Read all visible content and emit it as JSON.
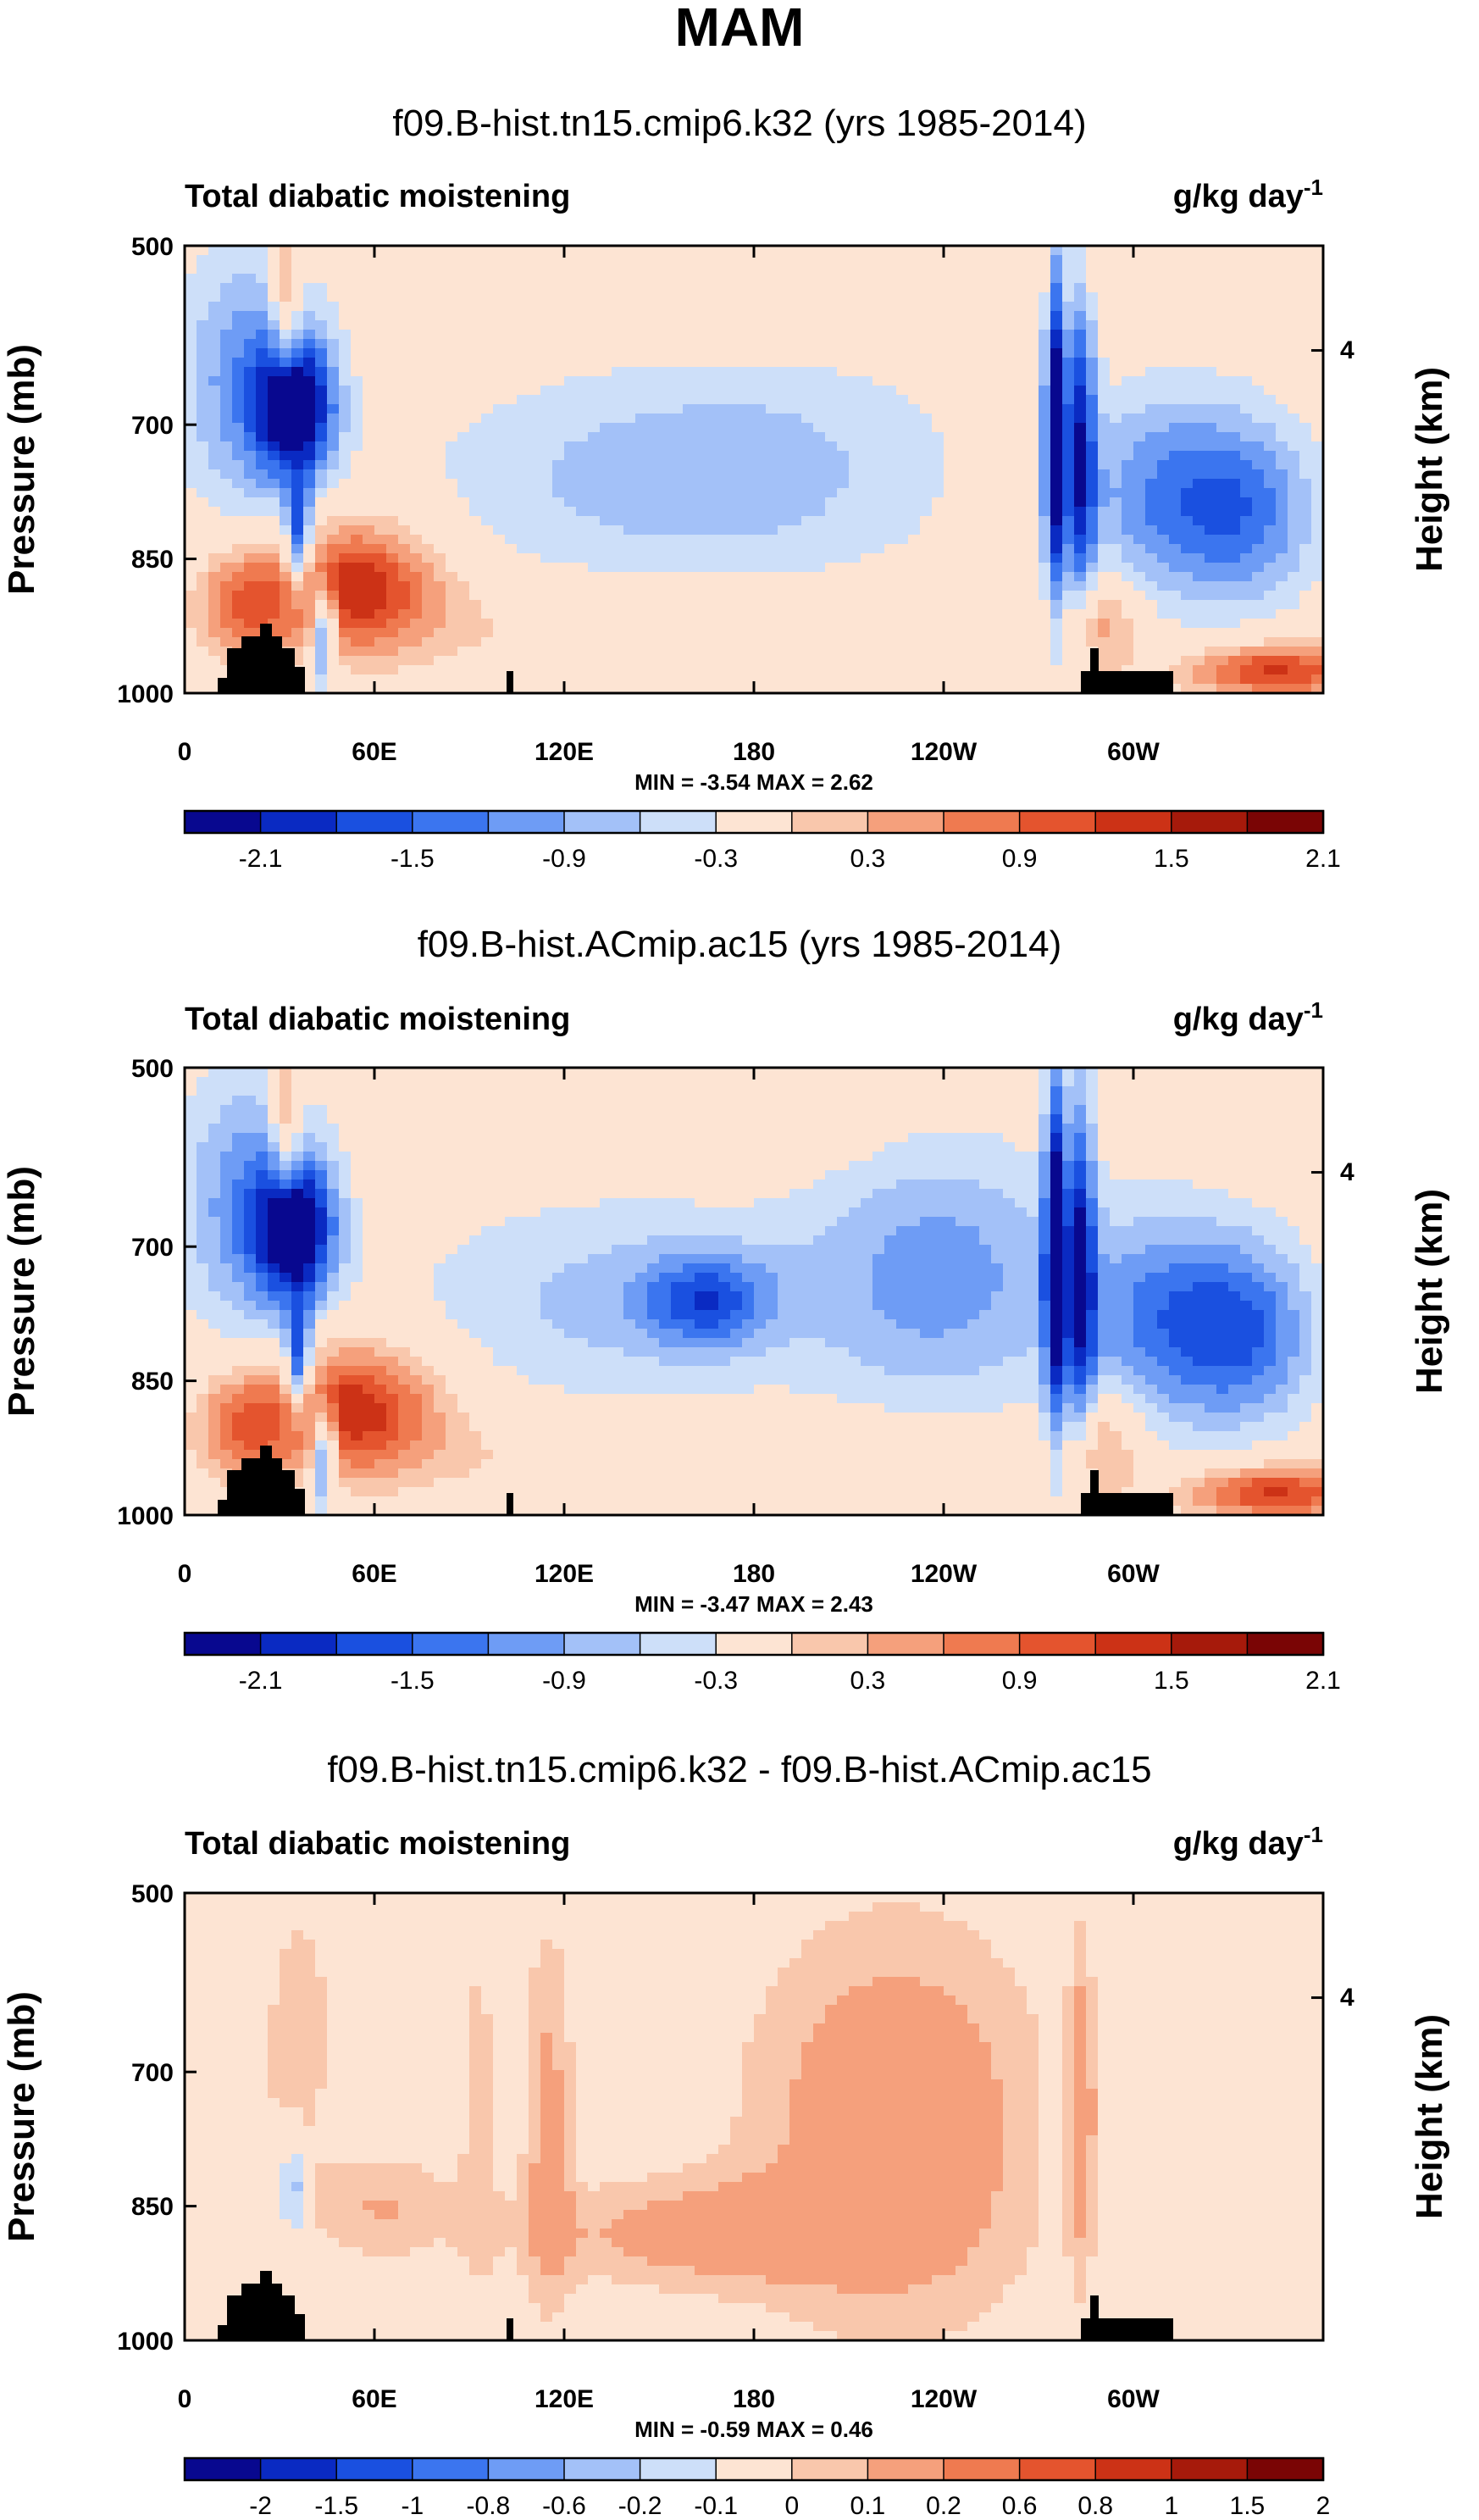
{
  "main_title": "MAM",
  "chart_data": [
    {
      "type": "heatmap",
      "title": "f09.B-hist.tn15.cmip6.k32 (yrs 1985-2014)",
      "left_label": "Total diabatic moistening",
      "unit_label": "g/kg day",
      "unit_exp": "-1",
      "ylabel": "Pressure (mb)",
      "ylabel_right": "Height (km)",
      "x_ticks": [
        "0",
        "60E",
        "120E",
        "180",
        "120W",
        "60W"
      ],
      "x_tick_lon": [
        0,
        60,
        120,
        180,
        240,
        300
      ],
      "xlim": [
        0,
        360
      ],
      "y_ticks": [
        "500",
        "700",
        "850",
        "1000"
      ],
      "y_tick_p": [
        500,
        700,
        850,
        1000
      ],
      "ylim": [
        500,
        1000
      ],
      "y_right_ticks": [
        "4"
      ],
      "y_right_p": [
        617
      ],
      "min_max": "MIN = -3.54  MAX =  2.62",
      "colorbar_labels": [
        "-2.1",
        "-1.5",
        "-0.9",
        "-0.3",
        "0.3",
        "0.9",
        "1.5",
        "2.1"
      ],
      "colorbar_label_bins": [
        1,
        3,
        5,
        7,
        9,
        11,
        13,
        15
      ],
      "blobs": [
        {
          "lon": 35,
          "p": 680,
          "rx": 12,
          "rp": 80,
          "v": -2.4
        },
        {
          "lon": 20,
          "p": 650,
          "rx": 22,
          "rp": 150,
          "v": -1.1
        },
        {
          "lon": 36,
          "p": 830,
          "rx": 4,
          "rp": 60,
          "v": -2.0
        },
        {
          "lon": 44,
          "p": 930,
          "rx": 4,
          "rp": 60,
          "v": -1.8
        },
        {
          "lon": 32,
          "p": 570,
          "rx": 5,
          "rp": 120,
          "v": 1.1
        },
        {
          "lon": 52,
          "p": 880,
          "rx": 28,
          "rp": 70,
          "v": 1.8
        },
        {
          "lon": 18,
          "p": 900,
          "rx": 14,
          "rp": 60,
          "v": 1.0
        },
        {
          "lon": 140,
          "p": 760,
          "rx": 70,
          "rp": 120,
          "v": -0.6
        },
        {
          "lon": 195,
          "p": 740,
          "rx": 60,
          "rp": 150,
          "v": -0.4
        },
        {
          "lon": 150,
          "p": 930,
          "rx": 110,
          "rp": 50,
          "v": 0.35
        },
        {
          "lon": 185,
          "p": 560,
          "rx": 50,
          "rp": 60,
          "v": 0.25
        },
        {
          "lon": 275,
          "p": 700,
          "rx": 3,
          "rp": 200,
          "v": -2.4
        },
        {
          "lon": 283,
          "p": 720,
          "rx": 5,
          "rp": 200,
          "v": -1.8
        },
        {
          "lon": 312,
          "p": 780,
          "rx": 30,
          "rp": 120,
          "v": -1.2
        },
        {
          "lon": 338,
          "p": 800,
          "rx": 22,
          "rp": 100,
          "v": -0.9
        },
        {
          "lon": 345,
          "p": 975,
          "rx": 28,
          "rp": 30,
          "v": 1.6
        },
        {
          "lon": 290,
          "p": 920,
          "rx": 12,
          "rp": 60,
          "v": 0.8
        },
        {
          "lon": 290,
          "p": 540,
          "rx": 60,
          "rp": 50,
          "v": 0.2
        }
      ]
    },
    {
      "type": "heatmap",
      "title": "f09.B-hist.ACmip.ac15 (yrs 1985-2014)",
      "left_label": "Total diabatic moistening",
      "unit_label": "g/kg day",
      "unit_exp": "-1",
      "ylabel": "Pressure (mb)",
      "ylabel_right": "Height (km)",
      "x_ticks": [
        "0",
        "60E",
        "120E",
        "180",
        "120W",
        "60W"
      ],
      "x_tick_lon": [
        0,
        60,
        120,
        180,
        240,
        300
      ],
      "xlim": [
        0,
        360
      ],
      "y_ticks": [
        "500",
        "700",
        "850",
        "1000"
      ],
      "y_tick_p": [
        500,
        700,
        850,
        1000
      ],
      "ylim": [
        500,
        1000
      ],
      "y_right_ticks": [
        "4"
      ],
      "y_right_p": [
        617
      ],
      "min_max": "MIN = -3.47  MAX =  2.43",
      "colorbar_labels": [
        "-2.1",
        "-1.5",
        "-0.9",
        "-0.3",
        "0.3",
        "0.9",
        "1.5",
        "2.1"
      ],
      "colorbar_label_bins": [
        1,
        3,
        5,
        7,
        9,
        11,
        13,
        15
      ],
      "blobs": [
        {
          "lon": 35,
          "p": 680,
          "rx": 12,
          "rp": 80,
          "v": -2.4
        },
        {
          "lon": 20,
          "p": 650,
          "rx": 22,
          "rp": 150,
          "v": -1.1
        },
        {
          "lon": 36,
          "p": 830,
          "rx": 4,
          "rp": 60,
          "v": -2.0
        },
        {
          "lon": 44,
          "p": 930,
          "rx": 4,
          "rp": 60,
          "v": -1.8
        },
        {
          "lon": 32,
          "p": 570,
          "rx": 5,
          "rp": 120,
          "v": 1.1
        },
        {
          "lon": 52,
          "p": 880,
          "rx": 28,
          "rp": 70,
          "v": 1.8
        },
        {
          "lon": 18,
          "p": 900,
          "rx": 14,
          "rp": 60,
          "v": 1.0
        },
        {
          "lon": 140,
          "p": 760,
          "rx": 70,
          "rp": 120,
          "v": -0.7
        },
        {
          "lon": 165,
          "p": 760,
          "rx": 20,
          "rp": 50,
          "v": -1.2
        },
        {
          "lon": 240,
          "p": 730,
          "rx": 40,
          "rp": 150,
          "v": -1.0
        },
        {
          "lon": 150,
          "p": 935,
          "rx": 110,
          "rp": 45,
          "v": 0.35
        },
        {
          "lon": 185,
          "p": 560,
          "rx": 40,
          "rp": 50,
          "v": 0.2
        },
        {
          "lon": 275,
          "p": 700,
          "rx": 3,
          "rp": 200,
          "v": -2.4
        },
        {
          "lon": 283,
          "p": 720,
          "rx": 5,
          "rp": 200,
          "v": -1.8
        },
        {
          "lon": 312,
          "p": 780,
          "rx": 30,
          "rp": 120,
          "v": -1.3
        },
        {
          "lon": 338,
          "p": 800,
          "rx": 22,
          "rp": 100,
          "v": -1.0
        },
        {
          "lon": 345,
          "p": 975,
          "rx": 28,
          "rp": 30,
          "v": 1.6
        },
        {
          "lon": 290,
          "p": 920,
          "rx": 12,
          "rp": 60,
          "v": 0.8
        }
      ]
    },
    {
      "type": "heatmap",
      "title": "f09.B-hist.tn15.cmip6.k32 - f09.B-hist.ACmip.ac15",
      "left_label": "Total diabatic moistening",
      "unit_label": "g/kg day",
      "unit_exp": "-1",
      "ylabel": "Pressure (mb)",
      "ylabel_right": "Height (km)",
      "x_ticks": [
        "0",
        "60E",
        "120E",
        "180",
        "120W",
        "60W"
      ],
      "x_tick_lon": [
        0,
        60,
        120,
        180,
        240,
        300
      ],
      "xlim": [
        0,
        360
      ],
      "y_ticks": [
        "500",
        "700",
        "850",
        "1000"
      ],
      "y_tick_p": [
        500,
        700,
        850,
        1000
      ],
      "ylim": [
        500,
        1000
      ],
      "y_right_ticks": [
        "4"
      ],
      "y_right_p": [
        617
      ],
      "min_max": "MIN = -0.59  MAX =  0.46",
      "colorbar_labels": [
        "-2",
        "-1.5",
        "-1",
        "-0.8",
        "-0.6",
        "-0.2",
        "-0.1",
        "0",
        "0.1",
        "0.2",
        "0.6",
        "0.8",
        "1",
        "1.5",
        "2"
      ],
      "colorbar_label_bins": [
        1,
        2,
        3,
        4,
        5,
        6,
        7,
        8,
        9,
        10,
        11,
        12,
        13,
        14,
        15
      ],
      "blobs": [
        {
          "lon": 225,
          "p": 760,
          "rx": 45,
          "rp": 220,
          "v": 0.35
        },
        {
          "lon": 165,
          "p": 880,
          "rx": 55,
          "rp": 60,
          "v": 0.28
        },
        {
          "lon": 35,
          "p": 650,
          "rx": 12,
          "rp": 140,
          "v": 0.2
        },
        {
          "lon": 62,
          "p": 850,
          "rx": 25,
          "rp": 60,
          "v": 0.2
        },
        {
          "lon": 115,
          "p": 760,
          "rx": 8,
          "rp": 220,
          "v": 0.25
        },
        {
          "lon": 93,
          "p": 740,
          "rx": 6,
          "rp": 220,
          "v": 0.15
        },
        {
          "lon": 34,
          "p": 830,
          "rx": 3,
          "rp": 60,
          "v": -0.4
        },
        {
          "lon": 283,
          "p": 740,
          "rx": 5,
          "rp": 180,
          "v": 0.3
        },
        {
          "lon": 276,
          "p": 700,
          "rx": 3,
          "rp": 220,
          "v": -0.2
        },
        {
          "lon": 330,
          "p": 720,
          "rx": 35,
          "rp": 260,
          "v": -0.06
        },
        {
          "lon": 15,
          "p": 600,
          "rx": 20,
          "rp": 100,
          "v": -0.06
        }
      ]
    }
  ],
  "colors": {
    "colorbar": [
      "#08088f",
      "#0a2ac2",
      "#1a50e0",
      "#3b75ef",
      "#6e9cf5",
      "#a3c1f8",
      "#cddff9",
      "#fde4d3",
      "#f9c7ac",
      "#f5a07c",
      "#ef7a50",
      "#e4542e",
      "#cc3216",
      "#a61a0b",
      "#7a0505"
    ],
    "white": "#ffffff",
    "mask": "#000000"
  }
}
